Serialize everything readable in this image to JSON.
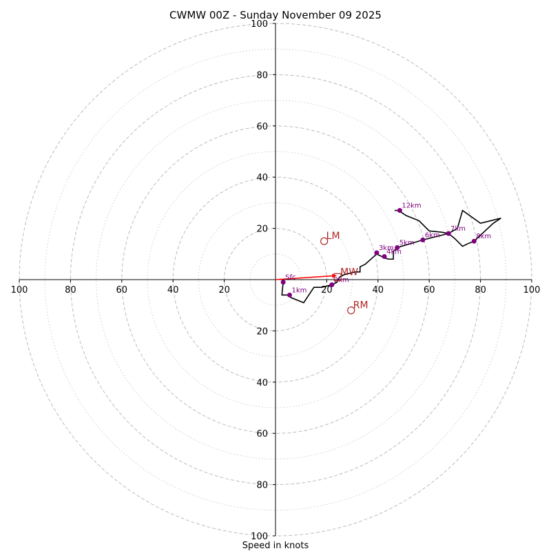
{
  "chart_data": {
    "type": "line",
    "title": "CWMW 00Z - Sunday November 09 2025",
    "xlabel": "Speed in knots",
    "ylabel": "",
    "xlim": [
      -100,
      100
    ],
    "ylim": [
      -100,
      100
    ],
    "x_ticks": [
      100,
      80,
      60,
      40,
      20,
      20,
      40,
      60,
      80,
      100
    ],
    "x_tick_vals": [
      -100,
      -80,
      -60,
      -40,
      -20,
      20,
      40,
      60,
      80,
      100
    ],
    "y_ticks": [
      100,
      80,
      60,
      40,
      20,
      20,
      40,
      60,
      80,
      100
    ],
    "y_tick_vals": [
      100,
      80,
      60,
      40,
      20,
      -20,
      -40,
      -60,
      -80,
      -100
    ],
    "rings_major": [
      20,
      40,
      60,
      80,
      100
    ],
    "rings_minor": [
      10,
      30,
      50,
      70,
      90
    ],
    "hodograph": [
      [
        3,
        -1
      ],
      [
        2.5,
        -6
      ],
      [
        5,
        -6
      ],
      [
        6,
        -7
      ],
      [
        11,
        -9
      ],
      [
        15,
        -3
      ],
      [
        18,
        -3
      ],
      [
        22,
        -2
      ],
      [
        24,
        -1
      ],
      [
        25,
        1
      ],
      [
        27,
        2
      ],
      [
        31,
        3
      ],
      [
        33,
        3
      ],
      [
        33,
        5
      ],
      [
        35,
        6
      ],
      [
        39.5,
        10
      ],
      [
        42.5,
        8.5
      ],
      [
        44,
        8
      ],
      [
        45,
        8
      ],
      [
        46,
        8
      ],
      [
        46,
        11
      ],
      [
        47.5,
        12.5
      ],
      [
        57.5,
        15.5
      ],
      [
        67.5,
        18
      ],
      [
        71,
        20
      ],
      [
        73,
        27
      ],
      [
        80,
        22
      ],
      [
        84,
        23
      ],
      [
        88,
        24
      ],
      [
        85,
        22
      ],
      [
        77.5,
        15
      ],
      [
        75,
        14
      ],
      [
        73,
        13
      ],
      [
        70,
        16
      ],
      [
        67.5,
        18
      ],
      [
        65,
        18.5
      ],
      [
        60,
        19
      ],
      [
        56,
        23
      ],
      [
        51,
        25
      ],
      [
        48,
        27
      ],
      [
        46.5,
        27
      ]
    ],
    "height_markers": [
      {
        "label": "Sfc",
        "u": 3,
        "v": -1
      },
      {
        "label": "1km",
        "u": 5.5,
        "v": -6
      },
      {
        "label": "2km",
        "u": 22,
        "v": -2
      },
      {
        "label": "3km",
        "u": 39.5,
        "v": 10.5
      },
      {
        "label": "4km",
        "u": 42.5,
        "v": 9
      },
      {
        "label": "5km",
        "u": 47.5,
        "v": 12.5
      },
      {
        "label": "6km",
        "u": 57.5,
        "v": 15.5
      },
      {
        "label": "7km",
        "u": 67.5,
        "v": 18
      },
      {
        "label": "8km",
        "u": 77.5,
        "v": 15
      },
      {
        "label": "12km",
        "u": 48.5,
        "v": 27
      }
    ],
    "storm_motion": [
      {
        "label": "LM",
        "u": 19,
        "v": 15
      },
      {
        "label": "RM",
        "u": 29.5,
        "v": -12
      },
      {
        "label": "MW",
        "u": 24.5,
        "v": 1
      }
    ],
    "shear_vector": {
      "from": [
        0,
        0
      ],
      "to": [
        24,
        1.5
      ]
    },
    "colors": {
      "trace": "#000000",
      "marker": "#800080",
      "storm": "#b22222",
      "arrow": "#ff0000",
      "grid": "#bbbbbb"
    }
  }
}
